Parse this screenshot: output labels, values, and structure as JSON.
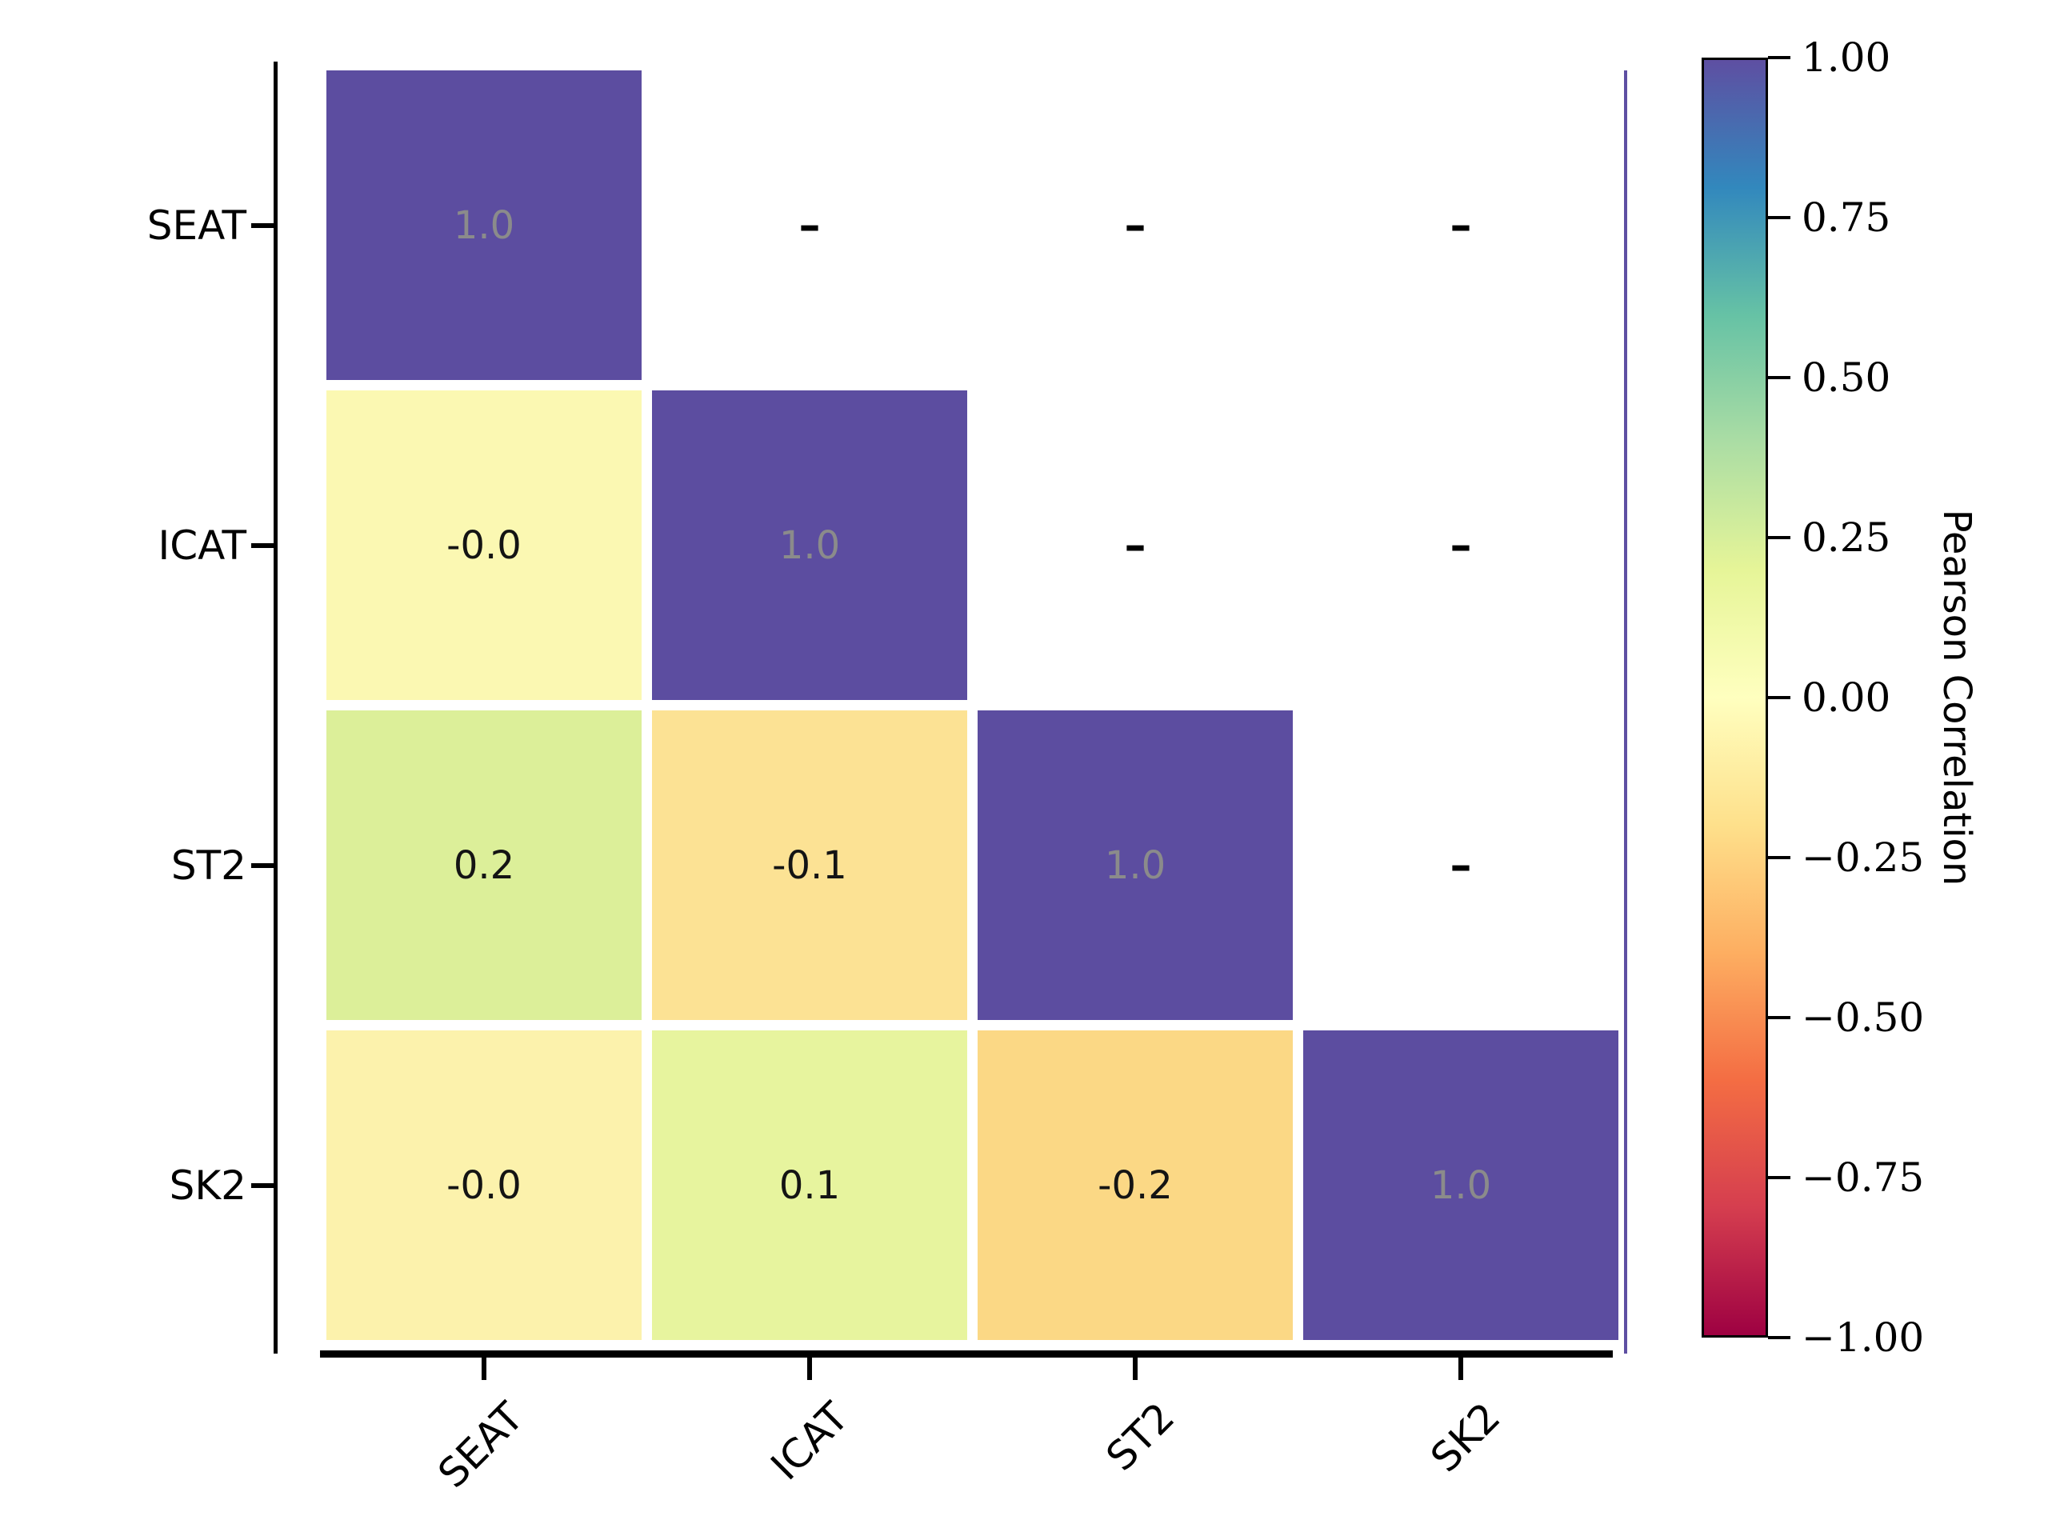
{
  "figure": {
    "background": "#ffffff"
  },
  "y_axis": {
    "labels": [
      "SEAT",
      "ICAT",
      "ST2",
      "SK2"
    ]
  },
  "x_axis": {
    "labels": [
      "SEAT",
      "ICAT",
      "ST2",
      "SK2"
    ]
  },
  "matrix": {
    "masked_label": "–",
    "annotation_color": "#141414",
    "diagonal_annotation_color": "#8b8b8b",
    "rows": [
      {
        "name": "SEAT",
        "cells": [
          {
            "col": 0,
            "label": "1.0",
            "color": "#5c4da0",
            "diagonal": true
          }
        ]
      },
      {
        "name": "ICAT",
        "cells": [
          {
            "col": 0,
            "label": "-0.0",
            "color": "#fbf8b2",
            "diagonal": false
          },
          {
            "col": 1,
            "label": "1.0",
            "color": "#5c4da0",
            "diagonal": true
          }
        ]
      },
      {
        "name": "ST2",
        "cells": [
          {
            "col": 0,
            "label": "0.2",
            "color": "#dcef99",
            "diagonal": false
          },
          {
            "col": 1,
            "label": "-0.1",
            "color": "#fce294",
            "diagonal": false
          },
          {
            "col": 2,
            "label": "1.0",
            "color": "#5c4da0",
            "diagonal": true
          }
        ]
      },
      {
        "name": "SK2",
        "cells": [
          {
            "col": 0,
            "label": "-0.0",
            "color": "#fcf2ac",
            "diagonal": false
          },
          {
            "col": 1,
            "label": "0.1",
            "color": "#e7f49e",
            "diagonal": false
          },
          {
            "col": 2,
            "label": "-0.2",
            "color": "#fbd885",
            "diagonal": false
          },
          {
            "col": 3,
            "label": "1.0",
            "color": "#5c4da0",
            "diagonal": true
          }
        ]
      }
    ],
    "masked": [
      [
        0,
        1
      ],
      [
        0,
        2
      ],
      [
        0,
        3
      ],
      [
        1,
        2
      ],
      [
        1,
        3
      ],
      [
        2,
        3
      ]
    ]
  },
  "colorbar": {
    "title": "Pearson Correlation",
    "ticks": [
      "1.00",
      "0.75",
      "0.50",
      "0.25",
      "0.00",
      "−0.25",
      "−0.50",
      "−0.75",
      "−1.00"
    ],
    "gradient": [
      "#5e4fa2",
      "#3288bd",
      "#66c2a5",
      "#abdda4",
      "#e6f598",
      "#ffffbf",
      "#fee08b",
      "#fdae61",
      "#f46d43",
      "#d53e4f",
      "#9e0142"
    ],
    "edge_color": "#5e4fa2"
  },
  "chart_data": {
    "type": "heatmap",
    "title": "",
    "xlabel": "",
    "ylabel": "",
    "categories": [
      "SEAT",
      "ICAT",
      "ST2",
      "SK2"
    ],
    "matrix": [
      [
        1.0,
        null,
        null,
        null
      ],
      [
        -0.0,
        1.0,
        null,
        null
      ],
      [
        0.2,
        -0.1,
        1.0,
        null
      ],
      [
        -0.0,
        0.1,
        -0.2,
        1.0
      ]
    ],
    "mask": "upper-triangle-masked-shown-as-dash",
    "colormap": "Spectral",
    "colorbar_label": "Pearson Correlation",
    "colorbar_range": [
      -1.0,
      1.0
    ],
    "colorbar_tick_values": [
      1.0,
      0.75,
      0.5,
      0.25,
      0.0,
      -0.25,
      -0.5,
      -0.75,
      -1.0
    ]
  }
}
